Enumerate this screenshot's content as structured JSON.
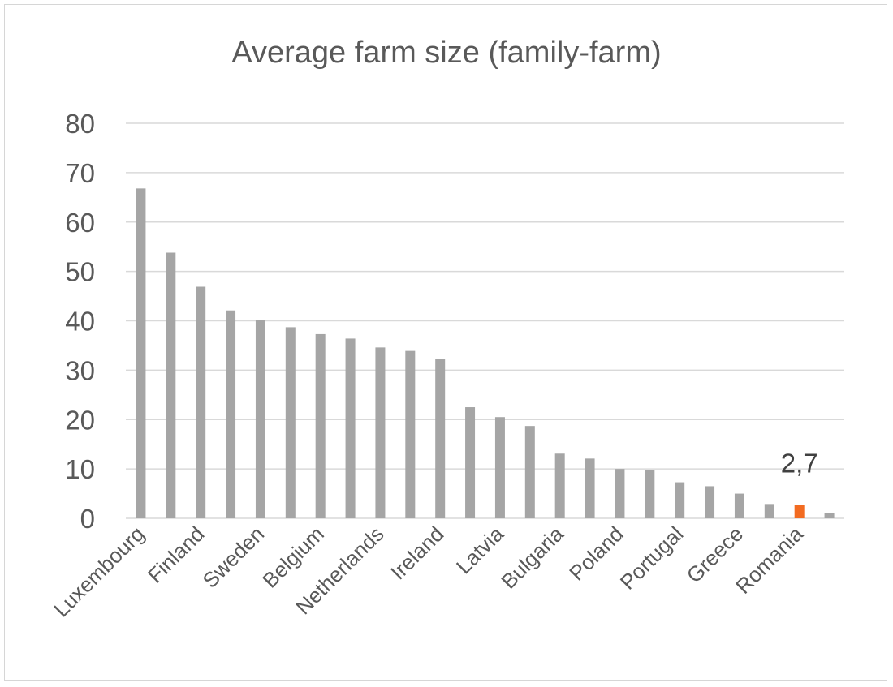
{
  "chart_data": {
    "type": "bar",
    "title": "Average farm size (family-farm)",
    "xlabel": "",
    "ylabel": "",
    "ylim": [
      0,
      80
    ],
    "yticks": [
      0,
      10,
      20,
      30,
      40,
      50,
      60,
      70,
      80
    ],
    "grid": true,
    "categories": [
      "Luxembourg",
      "",
      "Finland",
      "",
      "Sweden",
      "",
      "Belgium",
      "",
      "Netherlands",
      "",
      "Ireland",
      "",
      "Latvia",
      "",
      "Bulgaria",
      "",
      "Poland",
      "",
      "Portugal",
      "",
      "Greece",
      "",
      "Romania",
      ""
    ],
    "values": [
      66.8,
      53.8,
      46.9,
      42.1,
      40.1,
      38.7,
      37.3,
      36.4,
      34.6,
      33.9,
      32.3,
      22.5,
      20.5,
      18.7,
      13.1,
      12.1,
      10.0,
      9.7,
      7.3,
      6.5,
      5.0,
      2.9,
      2.7,
      1.1
    ],
    "highlight_index": 22,
    "data_labels": [
      {
        "index": 22,
        "text": "2,7"
      }
    ],
    "colors": {
      "bar": "#a5a5a5",
      "highlight": "#f26b21",
      "grid": "#d9d9d9",
      "text": "#595959",
      "label": "#404040"
    }
  }
}
